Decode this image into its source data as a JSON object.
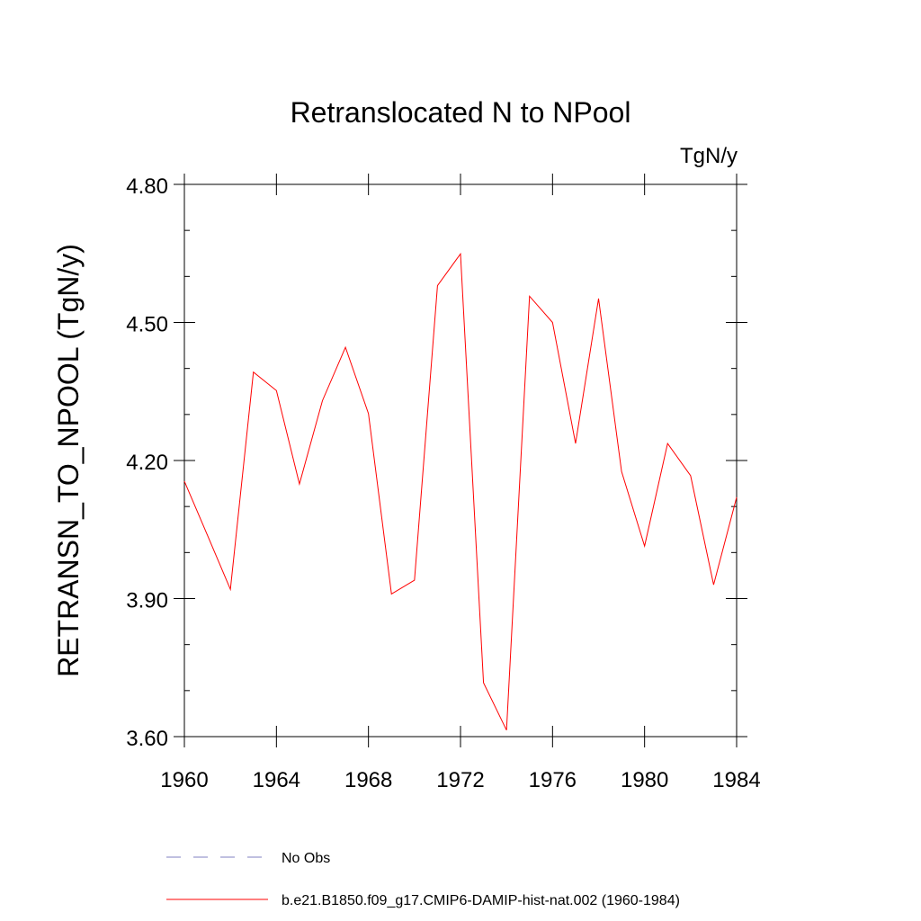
{
  "chart_data": {
    "type": "line",
    "title": "Retranslocated N to NPool",
    "units": "TgN/y",
    "ylabel": "RETRANSN_TO_NPOOL  (TgN/y)",
    "xlabel": "",
    "xlim": [
      1960,
      1984
    ],
    "ylim": [
      3.6,
      4.8
    ],
    "x_ticks": [
      1960,
      1964,
      1968,
      1972,
      1976,
      1980,
      1984
    ],
    "x_tick_labels": [
      "1960",
      "1964",
      "1968",
      "1972",
      "1976",
      "1980",
      "1984"
    ],
    "y_ticks": [
      3.6,
      3.9,
      4.2,
      4.5,
      4.8
    ],
    "y_tick_labels": [
      "3.60",
      "3.90",
      "4.20",
      "4.50",
      "4.80"
    ],
    "grid": false,
    "legend_position": "bottom",
    "series": [
      {
        "name": "No Obs",
        "style": "dashed",
        "color": "#8080c0",
        "x": [],
        "values": []
      },
      {
        "name": "b.e21.B1850.f09_g17.CMIP6-DAMIP-hist-nat.002 (1960-1984)",
        "style": "solid",
        "color": "#ff0000",
        "x": [
          1960,
          1961,
          1962,
          1963,
          1964,
          1965,
          1966,
          1967,
          1968,
          1969,
          1970,
          1971,
          1972,
          1973,
          1974,
          1975,
          1976,
          1977,
          1978,
          1979,
          1980,
          1981,
          1982,
          1983,
          1984
        ],
        "values": [
          4.155,
          4.038,
          3.92,
          4.392,
          4.352,
          4.149,
          4.33,
          4.446,
          4.302,
          3.91,
          3.94,
          4.58,
          4.649,
          3.717,
          3.614,
          4.557,
          4.5,
          4.237,
          4.552,
          4.176,
          4.014,
          4.237,
          4.167,
          3.93,
          4.12
        ]
      }
    ]
  }
}
